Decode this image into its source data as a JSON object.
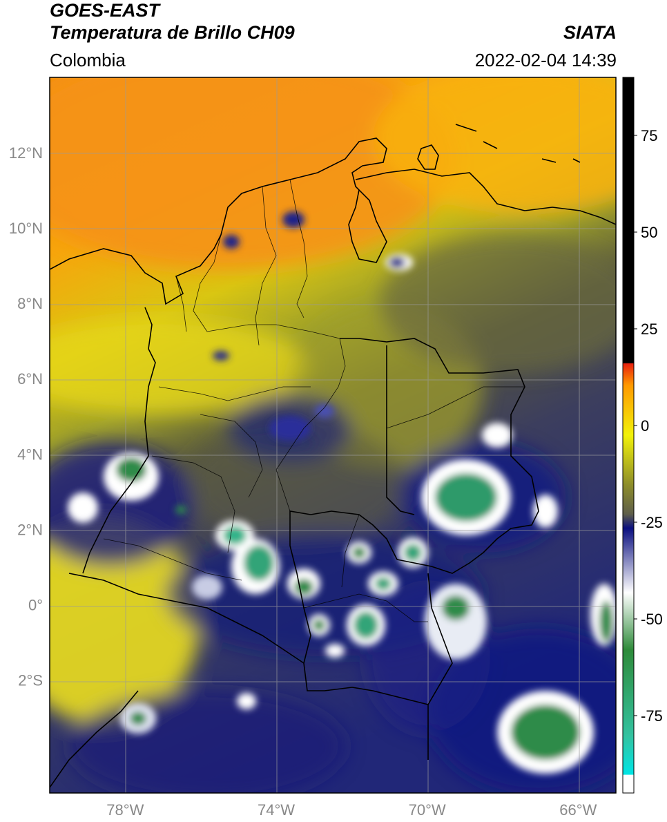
{
  "header": {
    "satellite": "GOES-EAST",
    "product": "Temperatura de Brillo CH09",
    "region": "Colombia",
    "agency": "SIATA",
    "datetime": "2022-02-04 14:39"
  },
  "map": {
    "lon_range": [
      -80,
      -65
    ],
    "lat_range": [
      -5,
      14
    ],
    "lon_ticks": [
      "78°W",
      "74°W",
      "70°W",
      "66°W"
    ],
    "lat_ticks": [
      "12°N",
      "10°N",
      "8°N",
      "6°N",
      "4°N",
      "2°N",
      "0°",
      "2°S"
    ],
    "gridlines": true
  },
  "colorbar": {
    "ticks": [
      "75",
      "50",
      "25",
      "0",
      "-25",
      "-50",
      "-75"
    ],
    "range": [
      -95,
      90
    ],
    "colors": {
      "black": "#000000",
      "red": "#e8210f",
      "orange": "#ff9900",
      "yellow": "#f2f20a",
      "olive": "#8c8c2a",
      "gray": "#5f5f4a",
      "navy": "#0b1080",
      "white": "#ffffff",
      "green": "#2e8b3a",
      "teal": "#33c2a0",
      "cyan": "#00e5e5"
    }
  }
}
